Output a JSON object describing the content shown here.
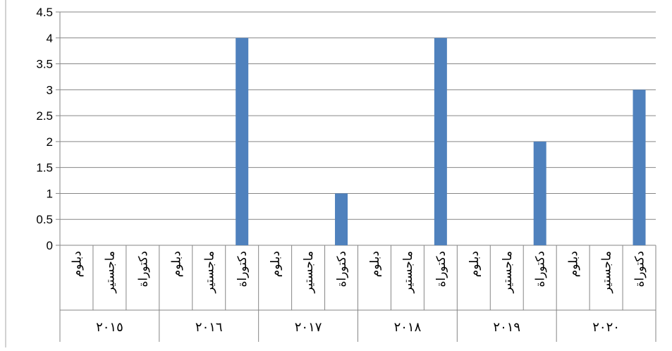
{
  "chart_data": {
    "type": "bar",
    "groups": [
      "٢٠١٥",
      "٢٠١٦",
      "٢٠١٧",
      "٢٠١٨",
      "٢٠١٩",
      "٢٠٢٠"
    ],
    "subcategories": [
      "دبلوم",
      "ماجستير",
      "دكتوراة"
    ],
    "series": [
      {
        "values": [
          0,
          0,
          0,
          0,
          0,
          4,
          0,
          0,
          1,
          0,
          0,
          4,
          0,
          0,
          2,
          0,
          0,
          3
        ]
      }
    ],
    "yticks": [
      "0",
      "0.5",
      "1",
      "1.5",
      "2",
      "2.5",
      "3",
      "3.5",
      "4",
      "4.5"
    ],
    "ylim": [
      0,
      4.5
    ],
    "grid": true,
    "bar_color": "#4F81BD",
    "grid_color": "#868686"
  }
}
